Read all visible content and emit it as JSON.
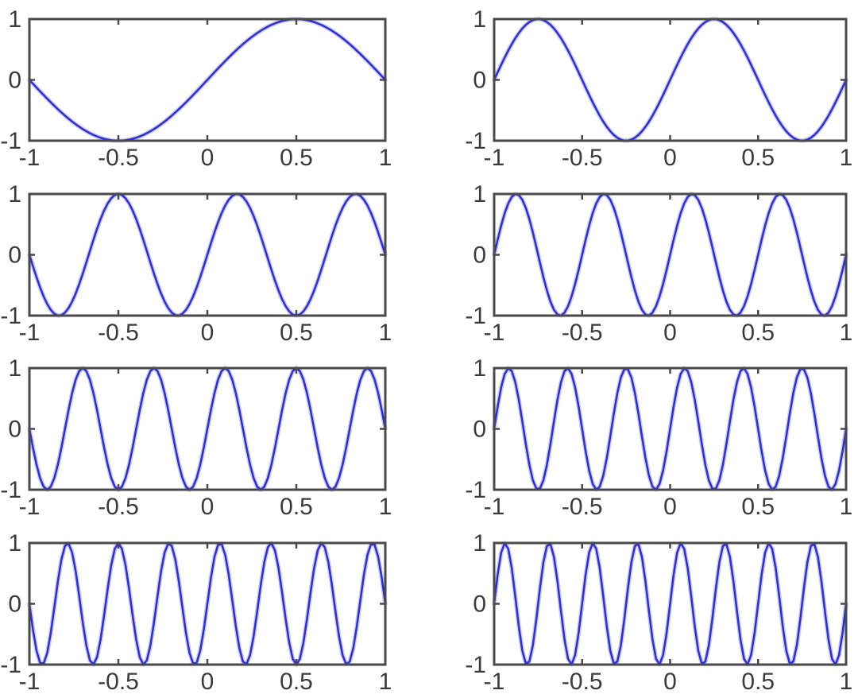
{
  "figure": {
    "title": "",
    "background_color": "#ffffff",
    "axis_frame_color": "#4a4a4a",
    "tick_mark_color": "#4a4a4a",
    "tick_label_color": "#3b3b3b",
    "line_color": "#2e2ed6",
    "line_halo_color": "#a0a0ea",
    "grid_rows": 4,
    "grid_cols": 2
  },
  "chart_data": [
    {
      "type": "line",
      "subplot": {
        "row": 1,
        "col": 1
      },
      "formula": "y = sin(1*pi*x)",
      "k": 1,
      "cycles_shown": 1,
      "amplitude": 1,
      "phase": 0,
      "xlim": [
        -1,
        1
      ],
      "ylim": [
        -1,
        1
      ],
      "x_ticks": [
        -1,
        -0.5,
        0,
        0.5,
        1
      ],
      "x_tick_labels": [
        "-1",
        "-0.5",
        "0",
        "0.5",
        "1"
      ],
      "y_ticks": [
        -1,
        0,
        1
      ],
      "y_tick_labels": [
        "-1",
        "0",
        "1"
      ],
      "sample_step": 0.02,
      "grid": "off",
      "legend": "none"
    },
    {
      "type": "line",
      "subplot": {
        "row": 1,
        "col": 2
      },
      "formula": "y = sin(2*pi*x)",
      "k": 2,
      "cycles_shown": 2,
      "amplitude": 1,
      "phase": 0,
      "xlim": [
        -1,
        1
      ],
      "ylim": [
        -1,
        1
      ],
      "x_ticks": [
        -1,
        -0.5,
        0,
        0.5,
        1
      ],
      "x_tick_labels": [
        "-1",
        "-0.5",
        "0",
        "0.5",
        "1"
      ],
      "y_ticks": [
        -1,
        0,
        1
      ],
      "y_tick_labels": [
        "-1",
        "0",
        "1"
      ],
      "sample_step": 0.02,
      "grid": "off",
      "legend": "none"
    },
    {
      "type": "line",
      "subplot": {
        "row": 2,
        "col": 1
      },
      "formula": "y = sin(3*pi*x)",
      "k": 3,
      "cycles_shown": 3,
      "amplitude": 1,
      "phase": 0,
      "xlim": [
        -1,
        1
      ],
      "ylim": [
        -1,
        1
      ],
      "x_ticks": [
        -1,
        -0.5,
        0,
        0.5,
        1
      ],
      "x_tick_labels": [
        "-1",
        "-0.5",
        "0",
        "0.5",
        "1"
      ],
      "y_ticks": [
        -1,
        0,
        1
      ],
      "y_tick_labels": [
        "-1",
        "0",
        "1"
      ],
      "sample_step": 0.02,
      "grid": "off",
      "legend": "none"
    },
    {
      "type": "line",
      "subplot": {
        "row": 2,
        "col": 2
      },
      "formula": "y = sin(4*pi*x)",
      "k": 4,
      "cycles_shown": 4,
      "amplitude": 1,
      "phase": 0,
      "xlim": [
        -1,
        1
      ],
      "ylim": [
        -1,
        1
      ],
      "x_ticks": [
        -1,
        -0.5,
        0,
        0.5,
        1
      ],
      "x_tick_labels": [
        "-1",
        "-0.5",
        "0",
        "0.5",
        "1"
      ],
      "y_ticks": [
        -1,
        0,
        1
      ],
      "y_tick_labels": [
        "-1",
        "0",
        "1"
      ],
      "sample_step": 0.02,
      "grid": "off",
      "legend": "none"
    },
    {
      "type": "line",
      "subplot": {
        "row": 3,
        "col": 1
      },
      "formula": "y = sin(5*pi*x)",
      "k": 5,
      "cycles_shown": 5,
      "amplitude": 1,
      "phase": 0,
      "xlim": [
        -1,
        1
      ],
      "ylim": [
        -1,
        1
      ],
      "x_ticks": [
        -1,
        -0.5,
        0,
        0.5,
        1
      ],
      "x_tick_labels": [
        "-1",
        "-0.5",
        "0",
        "0.5",
        "1"
      ],
      "y_ticks": [
        -1,
        0,
        1
      ],
      "y_tick_labels": [
        "-1",
        "0",
        "1"
      ],
      "sample_step": 0.02,
      "grid": "off",
      "legend": "none"
    },
    {
      "type": "line",
      "subplot": {
        "row": 3,
        "col": 2
      },
      "formula": "y = sin(6*pi*x)",
      "k": 6,
      "cycles_shown": 6,
      "amplitude": 1,
      "phase": 0,
      "xlim": [
        -1,
        1
      ],
      "ylim": [
        -1,
        1
      ],
      "x_ticks": [
        -1,
        -0.5,
        0,
        0.5,
        1
      ],
      "x_tick_labels": [
        "-1",
        "-0.5",
        "0",
        "0.5",
        "1"
      ],
      "y_ticks": [
        -1,
        0,
        1
      ],
      "y_tick_labels": [
        "-1",
        "0",
        "1"
      ],
      "sample_step": 0.02,
      "grid": "off",
      "legend": "none"
    },
    {
      "type": "line",
      "subplot": {
        "row": 4,
        "col": 1
      },
      "formula": "y = sin(7*pi*x)",
      "k": 7,
      "cycles_shown": 7,
      "amplitude": 1,
      "phase": 0,
      "xlim": [
        -1,
        1
      ],
      "ylim": [
        -1,
        1
      ],
      "x_ticks": [
        -1,
        -0.5,
        0,
        0.5,
        1
      ],
      "x_tick_labels": [
        "-1",
        "-0.5",
        "0",
        "0.5",
        "1"
      ],
      "y_ticks": [
        -1,
        0,
        1
      ],
      "y_tick_labels": [
        "-1",
        "0",
        "1"
      ],
      "sample_step": 0.02,
      "grid": "off",
      "legend": "none"
    },
    {
      "type": "line",
      "subplot": {
        "row": 4,
        "col": 2
      },
      "formula": "y = sin(8*pi*x)",
      "k": 8,
      "cycles_shown": 8,
      "amplitude": 1,
      "phase": 0,
      "xlim": [
        -1,
        1
      ],
      "ylim": [
        -1,
        1
      ],
      "x_ticks": [
        -1,
        -0.5,
        0,
        0.5,
        1
      ],
      "x_tick_labels": [
        "-1",
        "-0.5",
        "0",
        "0.5",
        "1"
      ],
      "y_ticks": [
        -1,
        0,
        1
      ],
      "y_tick_labels": [
        "-1",
        "0",
        "1"
      ],
      "sample_step": 0.02,
      "grid": "off",
      "legend": "none"
    }
  ]
}
